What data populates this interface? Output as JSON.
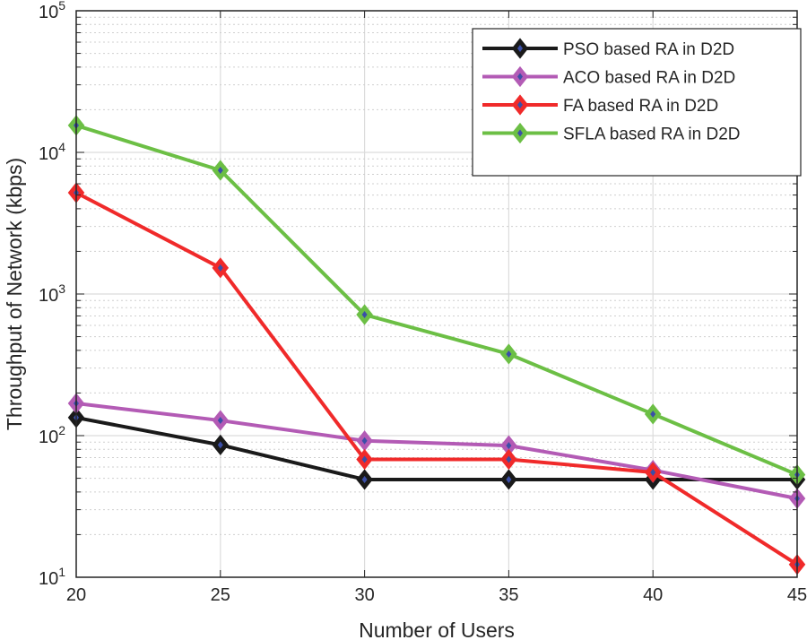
{
  "chart_data": {
    "type": "line",
    "title": "",
    "xlabel": "Number of Users",
    "ylabel": "Throughput of Network (kbps)",
    "x": [
      20,
      25,
      30,
      35,
      40,
      45
    ],
    "xlim": [
      20,
      45
    ],
    "xticks": [
      "20",
      "25",
      "30",
      "35",
      "40",
      "45"
    ],
    "ylim": [
      10,
      100000
    ],
    "yscale": "log",
    "yticks": [
      {
        "base": "10",
        "exp": "1"
      },
      {
        "base": "10",
        "exp": "2"
      },
      {
        "base": "10",
        "exp": "3"
      },
      {
        "base": "10",
        "exp": "4"
      },
      {
        "base": "10",
        "exp": "5"
      }
    ],
    "grid": true,
    "legend_position": "top-right",
    "marker": "diamond",
    "marker_center_color": "#3b4fa8",
    "series": [
      {
        "name": "PSO based RA in D2D",
        "color": "#1a1a1a",
        "values": [
          134,
          86,
          49,
          49,
          49,
          49
        ]
      },
      {
        "name": "ACO based RA in D2D",
        "color": "#b35bb5",
        "values": [
          169,
          128,
          92,
          85,
          57,
          36
        ]
      },
      {
        "name": "FA based RA in D2D",
        "color": "#f02a2a",
        "values": [
          5190,
          1530,
          68,
          68,
          55,
          12.3
        ]
      },
      {
        "name": "SFLA based RA in D2D",
        "color": "#6cbf45",
        "values": [
          15500,
          7470,
          715,
          377,
          142,
          53
        ]
      }
    ]
  }
}
